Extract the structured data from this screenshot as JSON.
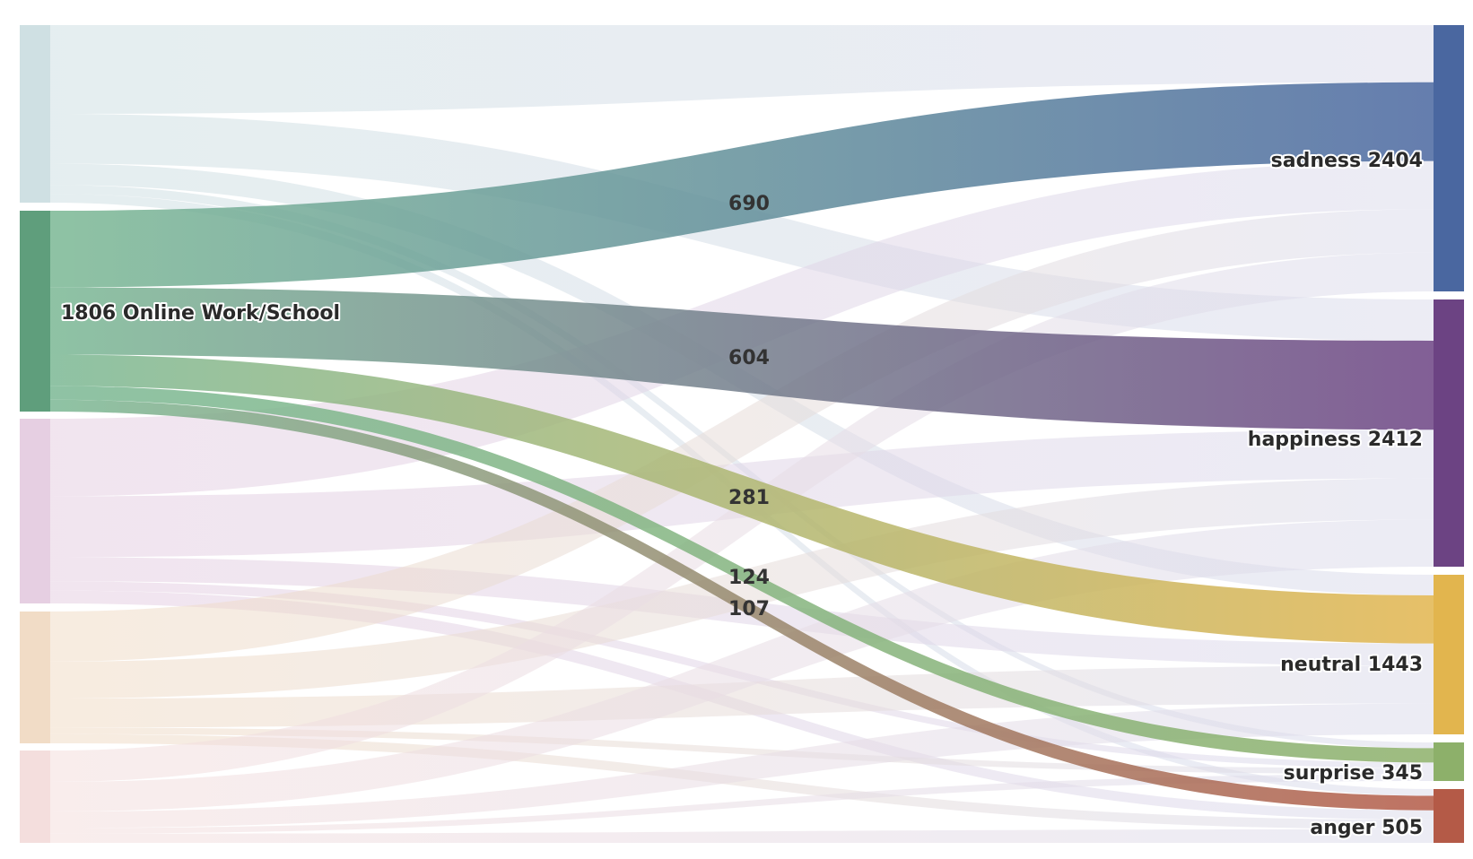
{
  "chart_data": {
    "type": "sankey",
    "sources": [
      {
        "id": "s1",
        "label": "",
        "color": "#cfe0e3"
      },
      {
        "id": "work",
        "label": "1806 Online Work/School",
        "color": "#5f9e7c"
      },
      {
        "id": "s3",
        "label": "",
        "color": "#e6cfe2"
      },
      {
        "id": "s4",
        "label": "",
        "color": "#f1dcc6"
      },
      {
        "id": "s5",
        "label": "",
        "color": "#f4dedd"
      }
    ],
    "targets": [
      {
        "id": "sadness",
        "label": "sadness 2404",
        "color": "#4a67a0"
      },
      {
        "id": "happiness",
        "label": "happiness 2412",
        "color": "#6c4383"
      },
      {
        "id": "neutral",
        "label": "neutral 1443",
        "color": "#e2b54e"
      },
      {
        "id": "surprise",
        "label": "surprise 345",
        "color": "#8db06a"
      },
      {
        "id": "anger",
        "label": "anger 505",
        "color": "#b45a47"
      }
    ],
    "highlighted_links": [
      {
        "source": "work",
        "target": "sadness",
        "value": 690,
        "label": "690"
      },
      {
        "source": "work",
        "target": "happiness",
        "value": 604,
        "label": "604"
      },
      {
        "source": "work",
        "target": "neutral",
        "value": 281,
        "label": "281"
      },
      {
        "source": "work",
        "target": "surprise",
        "value": 124,
        "label": "124"
      },
      {
        "source": "work",
        "target": "anger",
        "value": 107,
        "label": "107"
      }
    ],
    "background_links": [
      {
        "source": "s1",
        "target": "sadness"
      },
      {
        "source": "s1",
        "target": "happiness"
      },
      {
        "source": "s1",
        "target": "neutral"
      },
      {
        "source": "s1",
        "target": "surprise"
      },
      {
        "source": "s1",
        "target": "anger"
      },
      {
        "source": "s3",
        "target": "sadness"
      },
      {
        "source": "s3",
        "target": "happiness"
      },
      {
        "source": "s3",
        "target": "neutral"
      },
      {
        "source": "s3",
        "target": "surprise"
      },
      {
        "source": "s3",
        "target": "anger"
      },
      {
        "source": "s4",
        "target": "sadness"
      },
      {
        "source": "s4",
        "target": "happiness"
      },
      {
        "source": "s4",
        "target": "neutral"
      },
      {
        "source": "s4",
        "target": "surprise"
      },
      {
        "source": "s4",
        "target": "anger"
      },
      {
        "source": "s5",
        "target": "sadness"
      },
      {
        "source": "s5",
        "target": "happiness"
      },
      {
        "source": "s5",
        "target": "neutral"
      },
      {
        "source": "s5",
        "target": "surprise"
      },
      {
        "source": "s5",
        "target": "anger"
      }
    ]
  }
}
